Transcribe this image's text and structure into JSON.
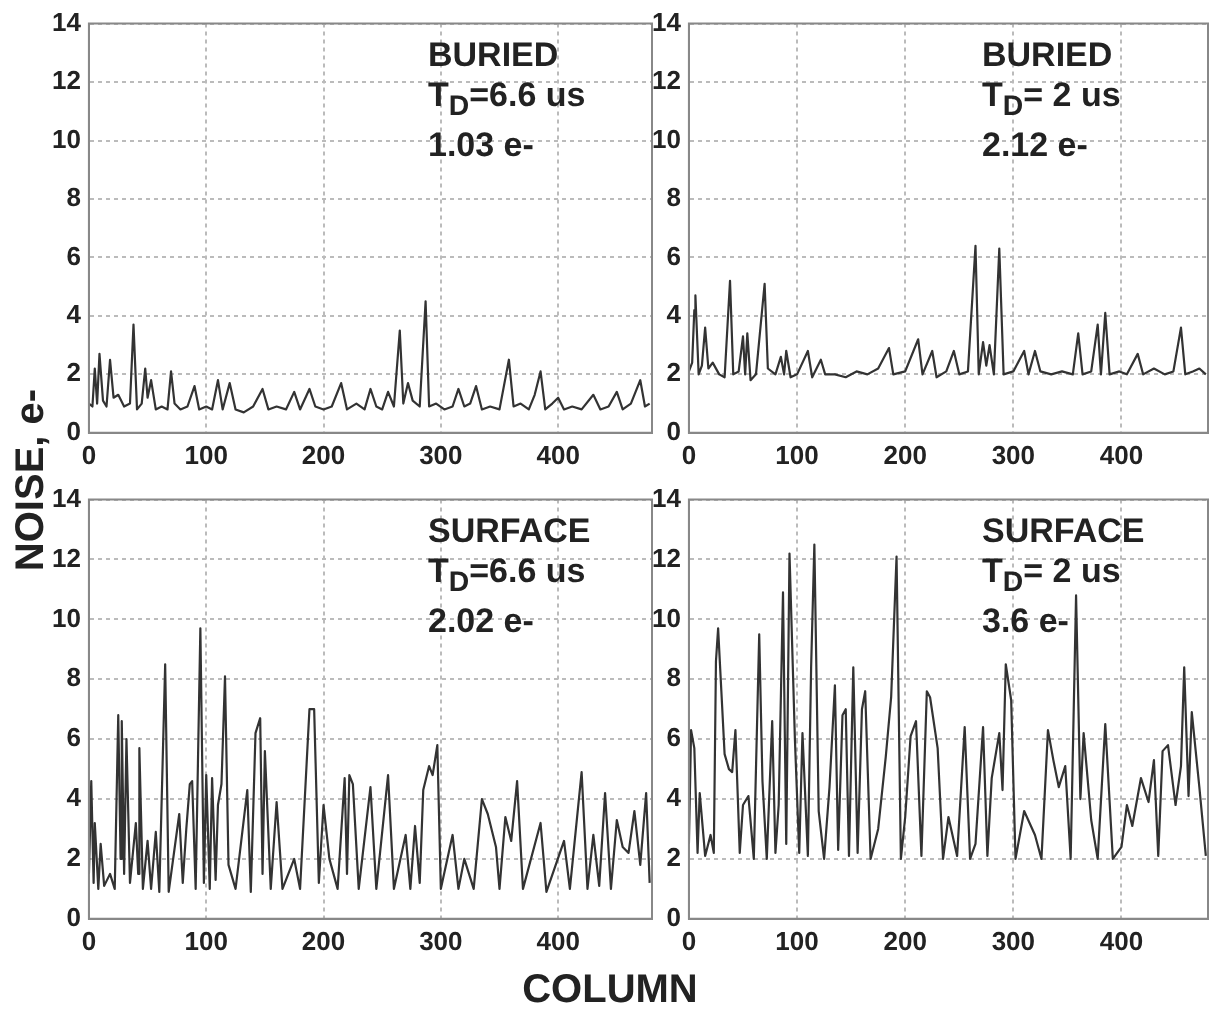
{
  "chart_data": [
    {
      "type": "line",
      "ylabel": "NOISE, e-",
      "annotations": [
        "BURIED",
        "T$_{D}$=6.6 us",
        "1.03 e-"
      ],
      "xlim": [
        0,
        480
      ],
      "xticks": [
        0,
        100,
        200,
        300,
        400
      ],
      "ylim": [
        0,
        14
      ],
      "yticks": [
        0,
        2,
        4,
        6,
        8,
        10,
        12,
        14
      ],
      "grid": true,
      "x": [
        0,
        3,
        5,
        7,
        9,
        12,
        15,
        18,
        21,
        25,
        30,
        35,
        38,
        41,
        45,
        48,
        50,
        53,
        57,
        62,
        67,
        70,
        73,
        78,
        84,
        90,
        94,
        100,
        105,
        110,
        114,
        120,
        125,
        132,
        140,
        148,
        153,
        160,
        168,
        175,
        180,
        188,
        193,
        200,
        207,
        215,
        220,
        228,
        235,
        240,
        245,
        250,
        255,
        260,
        265,
        268,
        272,
        276,
        282,
        287,
        290,
        296,
        303,
        310,
        315,
        320,
        325,
        330,
        335,
        342,
        350,
        358,
        362,
        368,
        375,
        380,
        385,
        389,
        395,
        400,
        405,
        412,
        420,
        430,
        436,
        443,
        450,
        455,
        462,
        470,
        474,
        478
      ],
      "series": [
        {
          "color": "#333333",
          "values": [
            1.0,
            0.9,
            2.2,
            1.0,
            2.7,
            1.1,
            0.9,
            2.5,
            1.2,
            1.3,
            0.9,
            1.0,
            3.7,
            0.8,
            1.0,
            2.2,
            1.2,
            1.8,
            0.8,
            0.9,
            0.8,
            2.1,
            1.0,
            0.8,
            0.9,
            1.6,
            0.8,
            0.9,
            0.8,
            1.8,
            0.8,
            1.7,
            0.8,
            0.7,
            0.9,
            1.5,
            0.8,
            0.9,
            0.8,
            1.4,
            0.8,
            1.5,
            0.9,
            0.8,
            0.9,
            1.7,
            0.8,
            1.0,
            0.8,
            1.5,
            0.9,
            0.8,
            1.4,
            0.9,
            3.5,
            1.0,
            1.7,
            1.1,
            0.9,
            4.5,
            0.9,
            1.0,
            0.8,
            0.9,
            1.5,
            0.9,
            1.0,
            1.6,
            0.8,
            0.9,
            0.8,
            2.5,
            0.9,
            1.0,
            0.8,
            1.3,
            2.1,
            0.8,
            1.0,
            1.2,
            0.8,
            0.9,
            0.8,
            1.3,
            0.8,
            0.9,
            1.4,
            0.8,
            1.0,
            1.8,
            0.9,
            1.0
          ]
        }
      ]
    },
    {
      "type": "line",
      "annotations": [
        "BURIED",
        "T$_{D}$= 2 us",
        "2.12 e-"
      ],
      "xlim": [
        0,
        480
      ],
      "xticks": [
        0,
        100,
        200,
        300,
        400
      ],
      "ylim": [
        0,
        14
      ],
      "yticks": [
        0,
        2,
        4,
        6,
        8,
        10,
        12,
        14
      ],
      "grid": true,
      "x": [
        0,
        3,
        5,
        6,
        9,
        12,
        15,
        18,
        22,
        28,
        33,
        38,
        41,
        46,
        50,
        52,
        54,
        57,
        62,
        70,
        73,
        80,
        85,
        88,
        90,
        94,
        100,
        110,
        114,
        122,
        126,
        135,
        145,
        155,
        165,
        175,
        185,
        189,
        200,
        212,
        216,
        225,
        229,
        238,
        245,
        250,
        258,
        265,
        268,
        272,
        275,
        278,
        282,
        287,
        291,
        300,
        310,
        314,
        320,
        325,
        335,
        345,
        355,
        360,
        364,
        372,
        378,
        381,
        385,
        389,
        398,
        405,
        415,
        420,
        430,
        440,
        448,
        455,
        459,
        466,
        472,
        478
      ],
      "series": [
        {
          "color": "#333333",
          "values": [
            2.1,
            2.4,
            4.2,
            4.7,
            2.0,
            2.3,
            3.6,
            2.2,
            2.4,
            2.0,
            1.9,
            5.2,
            2.0,
            2.1,
            3.3,
            2.0,
            3.4,
            1.8,
            2.0,
            5.1,
            2.2,
            2.0,
            2.6,
            2.0,
            2.8,
            1.9,
            2.0,
            2.8,
            1.9,
            2.5,
            2.0,
            2.0,
            1.9,
            2.1,
            2.0,
            2.2,
            2.9,
            2.0,
            2.1,
            3.2,
            2.0,
            2.8,
            1.9,
            2.1,
            2.8,
            2.0,
            2.1,
            6.4,
            2.0,
            3.1,
            2.3,
            3.0,
            2.0,
            6.3,
            2.0,
            2.1,
            2.8,
            2.0,
            2.8,
            2.1,
            2.0,
            2.1,
            2.0,
            3.4,
            2.0,
            2.1,
            3.7,
            2.0,
            4.1,
            2.0,
            2.1,
            2.0,
            2.7,
            2.0,
            2.2,
            2.0,
            2.1,
            3.6,
            2.0,
            2.1,
            2.2,
            2.0
          ]
        }
      ]
    },
    {
      "type": "line",
      "xlabel": "COLUMN",
      "annotations": [
        "SURFACE",
        "T$_{D}$=6.6 us",
        "2.02 e-"
      ],
      "xlim": [
        0,
        480
      ],
      "xticks": [
        0,
        100,
        200,
        300,
        400
      ],
      "ylim": [
        0,
        14
      ],
      "yticks": [
        0,
        2,
        4,
        6,
        8,
        10,
        12,
        14
      ],
      "grid": true,
      "x": [
        0,
        2,
        4,
        5,
        8,
        10,
        13,
        18,
        22,
        25,
        27,
        28,
        30,
        32,
        35,
        40,
        42,
        43,
        46,
        50,
        53,
        57,
        60,
        65,
        68,
        77,
        80,
        83,
        86,
        88,
        91,
        95,
        98,
        100,
        103,
        105,
        108,
        110,
        113,
        116,
        119,
        125,
        135,
        138,
        142,
        146,
        148,
        150,
        155,
        160,
        165,
        175,
        180,
        188,
        192,
        196,
        200,
        205,
        212,
        218,
        220,
        222,
        225,
        230,
        240,
        245,
        255,
        260,
        270,
        274,
        278,
        282,
        285,
        290,
        293,
        297,
        300,
        310,
        315,
        320,
        328,
        335,
        340,
        347,
        350,
        355,
        360,
        365,
        370,
        385,
        390,
        405,
        410,
        420,
        425,
        430,
        435,
        440,
        445,
        450,
        455,
        460,
        465,
        470,
        475,
        478
      ],
      "series": [
        {
          "color": "#333333",
          "values": [
            1.5,
            4.6,
            1.2,
            3.2,
            1.0,
            2.5,
            1.1,
            1.5,
            1.0,
            6.8,
            2.0,
            6.6,
            1.5,
            6.0,
            1.2,
            3.2,
            1.5,
            5.7,
            1.0,
            2.6,
            1.0,
            2.9,
            0.9,
            8.5,
            0.9,
            3.5,
            1.2,
            3.0,
            4.5,
            4.6,
            1.0,
            9.7,
            1.2,
            4.8,
            1.0,
            4.7,
            1.3,
            3.8,
            4.5,
            8.1,
            1.8,
            1.0,
            4.3,
            0.9,
            6.2,
            6.7,
            1.5,
            5.6,
            1.0,
            3.9,
            1.0,
            2.0,
            1.0,
            7.0,
            7.0,
            1.2,
            3.8,
            2.0,
            1.0,
            4.7,
            1.5,
            4.8,
            4.5,
            1.0,
            4.4,
            1.0,
            4.8,
            1.0,
            2.8,
            1.0,
            3.1,
            1.2,
            4.3,
            5.1,
            4.8,
            5.8,
            1.0,
            2.8,
            1.0,
            2.0,
            1.0,
            4.0,
            3.5,
            2.4,
            1.0,
            3.4,
            2.6,
            4.6,
            1.0,
            3.2,
            0.9,
            2.6,
            1.0,
            4.9,
            1.0,
            2.8,
            1.1,
            4.2,
            1.0,
            3.3,
            2.4,
            2.2,
            3.6,
            1.8,
            4.2,
            1.2
          ]
        }
      ]
    },
    {
      "type": "line",
      "annotations": [
        "SURFACE",
        "T$_{D}$= 2 us",
        "3.6 e-"
      ],
      "xlim": [
        0,
        480
      ],
      "xticks": [
        0,
        100,
        200,
        300,
        400
      ],
      "ylim": [
        0,
        14
      ],
      "yticks": [
        0,
        2,
        4,
        6,
        8,
        10,
        12,
        14
      ],
      "grid": true,
      "x": [
        0,
        2,
        5,
        8,
        10,
        15,
        20,
        23,
        25,
        27,
        30,
        33,
        37,
        40,
        43,
        47,
        50,
        55,
        60,
        65,
        68,
        72,
        77,
        80,
        83,
        87,
        90,
        93,
        98,
        102,
        105,
        110,
        113,
        116,
        120,
        125,
        130,
        135,
        138,
        142,
        145,
        148,
        152,
        156,
        160,
        163,
        168,
        175,
        182,
        187,
        192,
        196,
        200,
        205,
        210,
        215,
        220,
        223,
        230,
        235,
        240,
        248,
        255,
        260,
        265,
        272,
        276,
        280,
        287,
        290,
        293,
        298,
        302,
        310,
        320,
        326,
        332,
        337,
        342,
        348,
        353,
        358,
        362,
        365,
        372,
        378,
        385,
        392,
        400,
        405,
        410,
        418,
        425,
        430,
        434,
        438,
        443,
        450,
        455,
        458,
        462,
        465,
        472,
        478
      ],
      "series": [
        {
          "color": "#333333",
          "values": [
            2.5,
            6.3,
            5.7,
            2.2,
            4.2,
            2.1,
            2.8,
            2.2,
            8.6,
            9.7,
            7.6,
            5.5,
            5.0,
            4.9,
            6.3,
            2.2,
            3.8,
            4.1,
            2.0,
            9.5,
            4.6,
            2.0,
            6.6,
            2.2,
            3.8,
            10.9,
            2.5,
            12.2,
            6.0,
            2.2,
            6.2,
            2.1,
            8.4,
            12.5,
            3.6,
            2.0,
            4.4,
            7.8,
            2.3,
            6.8,
            7.0,
            2.1,
            8.4,
            2.2,
            7.0,
            7.6,
            2.0,
            3.0,
            5.4,
            7.4,
            12.1,
            2.0,
            3.4,
            6.1,
            6.6,
            2.1,
            7.6,
            7.4,
            5.7,
            2.0,
            3.4,
            2.1,
            6.4,
            2.0,
            2.5,
            6.4,
            2.1,
            4.7,
            6.2,
            4.3,
            8.5,
            7.3,
            2.0,
            3.6,
            2.8,
            2.0,
            6.3,
            5.3,
            4.4,
            5.1,
            2.0,
            10.8,
            4.0,
            6.2,
            3.3,
            2.0,
            6.5,
            2.0,
            2.4,
            3.8,
            3.1,
            4.7,
            3.9,
            5.3,
            2.1,
            5.6,
            5.8,
            3.8,
            5.1,
            8.4,
            4.1,
            6.9,
            4.4,
            2.1
          ]
        }
      ]
    }
  ]
}
